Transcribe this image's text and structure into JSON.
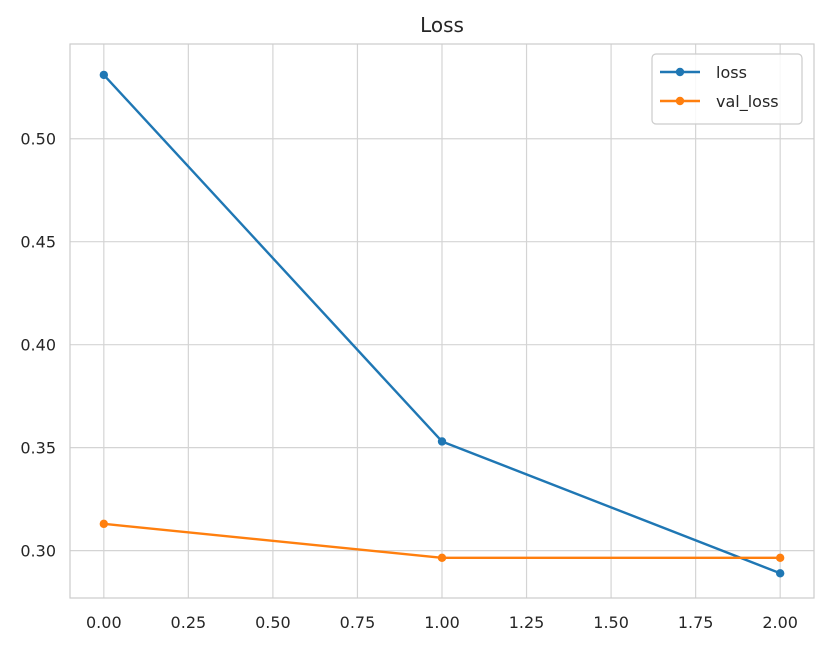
{
  "chart_data": {
    "type": "line",
    "title": "Loss",
    "xlabel": "",
    "ylabel": "",
    "xlim": [
      -0.1,
      2.1
    ],
    "ylim": [
      0.277,
      0.546
    ],
    "x_ticks": [
      "0.00",
      "0.25",
      "0.50",
      "0.75",
      "1.00",
      "1.25",
      "1.50",
      "1.75",
      "2.00"
    ],
    "y_ticks": [
      "0.30",
      "0.35",
      "0.40",
      "0.45",
      "0.50"
    ],
    "grid": true,
    "legend_position": "top-right",
    "x": [
      0,
      1,
      2
    ],
    "series": [
      {
        "name": "loss",
        "color": "#1f77b4",
        "values": [
          0.531,
          0.353,
          0.289
        ]
      },
      {
        "name": "val_loss",
        "color": "#ff7f0e",
        "values": [
          0.313,
          0.2965,
          0.2965
        ]
      }
    ]
  }
}
